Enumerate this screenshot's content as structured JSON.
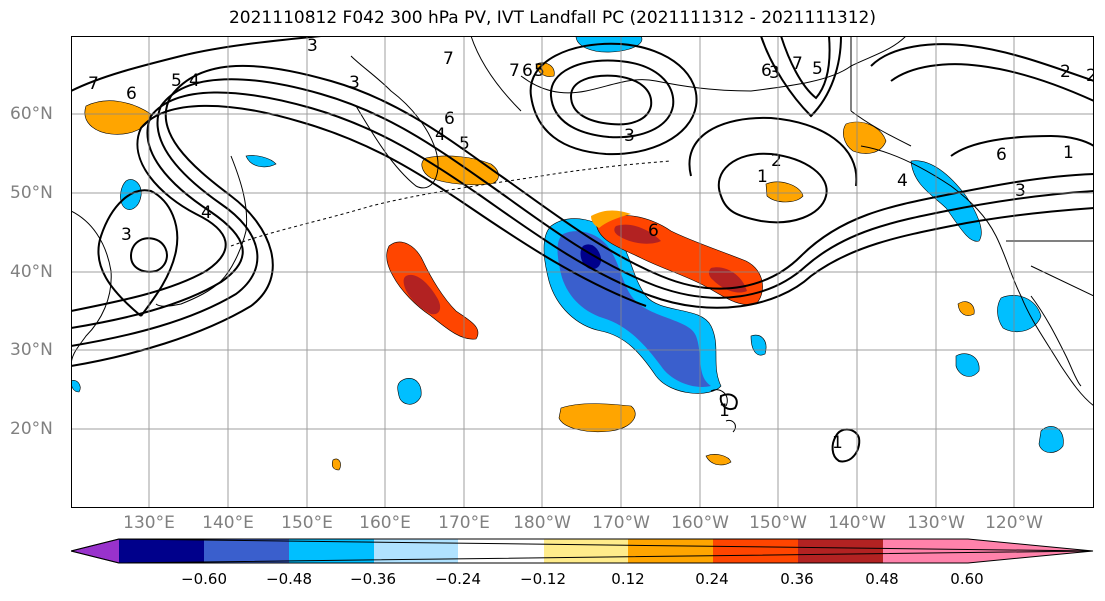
{
  "title": "2021110812 F042 300 hPa PV, IVT Landfall PC (2021111312 - 2021111312)",
  "lat_labels": [
    "60°N",
    "50°N",
    "40°N",
    "30°N",
    "20°N"
  ],
  "lon_labels": [
    "130°E",
    "140°E",
    "150°E",
    "160°E",
    "170°E",
    "180°W",
    "170°W",
    "160°W",
    "150°W",
    "140°W",
    "130°W",
    "120°W"
  ],
  "contour_labels": [
    "3",
    "7",
    "6",
    "5",
    "4",
    "3",
    "7",
    "6",
    "5",
    "4",
    "3",
    "7",
    "6",
    "5",
    "4",
    "3",
    "2",
    "1",
    "6",
    "4",
    "3",
    "2",
    "1",
    "6",
    "5",
    "7",
    "2",
    "3",
    "1",
    "1",
    "6"
  ],
  "colorbar": {
    "tick_labels": [
      "−0.60",
      "−0.48",
      "−0.36",
      "−0.24",
      "−0.12",
      "0.12",
      "0.24",
      "0.36",
      "0.48",
      "0.60"
    ],
    "colors": [
      "#9932cc",
      "#00008b",
      "#3a5fcd",
      "#00bfff",
      "#b0e2ff",
      "#ffffff",
      "#ffec8b",
      "#ffa500",
      "#ff4500",
      "#b22222",
      "#ff82ab"
    ]
  },
  "fill_colors": {
    "neg_light": "#b0e2ff",
    "neg_mid": "#00bfff",
    "neg_strong": "#3a5fcd",
    "neg_max": "#00008b",
    "pos_light": "#ffec8b",
    "pos_mid": "#ffa500",
    "pos_strong": "#ff4500",
    "pos_max": "#b22222"
  }
}
